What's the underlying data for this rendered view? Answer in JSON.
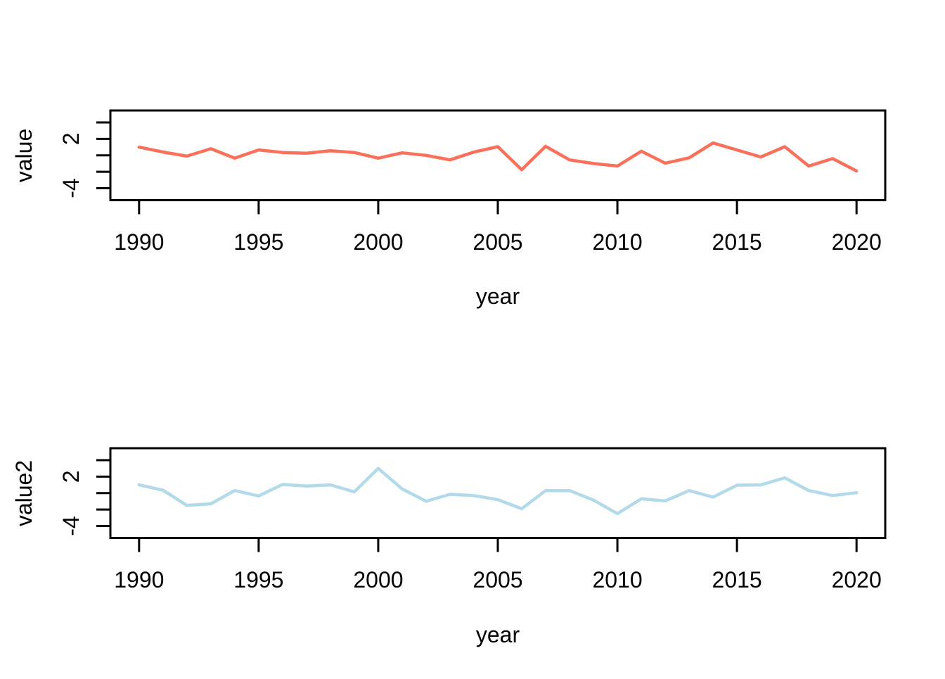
{
  "page": {
    "background": "#ffffff"
  },
  "chart_data": [
    {
      "type": "line",
      "title": "",
      "xlabel": "year",
      "ylabel": "value",
      "x": [
        1990,
        1991,
        1992,
        1993,
        1994,
        1995,
        1996,
        1997,
        1998,
        1999,
        2000,
        2001,
        2002,
        2003,
        2004,
        2005,
        2006,
        2007,
        2008,
        2009,
        2010,
        2011,
        2012,
        2013,
        2014,
        2015,
        2016,
        2017,
        2018,
        2019,
        2020
      ],
      "series": [
        {
          "name": "value",
          "color": "#f9705b",
          "values": [
            1.0,
            0.4,
            -0.1,
            0.8,
            -0.35,
            0.65,
            0.35,
            0.25,
            0.55,
            0.35,
            -0.35,
            0.3,
            0.0,
            -0.55,
            0.4,
            1.05,
            -1.75,
            1.1,
            -0.55,
            -1.0,
            -1.3,
            0.5,
            -0.95,
            -0.3,
            1.5,
            0.65,
            -0.2,
            1.05,
            -1.3,
            -0.4,
            -1.9
          ]
        }
      ],
      "xlim": [
        1988.8,
        2021.2
      ],
      "ylim": [
        -5.45,
        5.45
      ],
      "xticks": [
        1990,
        1995,
        2000,
        2005,
        2010,
        2015,
        2020
      ],
      "xtick_labels": [
        "1990",
        "1995",
        "2000",
        "2005",
        "2010",
        "2015",
        "2020"
      ],
      "yticks": [
        4,
        2,
        0,
        -2,
        -4
      ],
      "ytick_labels": [
        {
          "value": 2,
          "label": "2"
        },
        {
          "value": -4,
          "label": "-4"
        }
      ],
      "grid": false,
      "legend_position": "none",
      "axis_color": "#000000"
    },
    {
      "type": "line",
      "title": "",
      "xlabel": "year",
      "ylabel": "value2",
      "x": [
        1990,
        1991,
        1992,
        1993,
        1994,
        1995,
        1996,
        1997,
        1998,
        1999,
        2000,
        2001,
        2002,
        2003,
        2004,
        2005,
        2006,
        2007,
        2008,
        2009,
        2010,
        2011,
        2012,
        2013,
        2014,
        2015,
        2016,
        2017,
        2018,
        2019,
        2020
      ],
      "series": [
        {
          "name": "value2",
          "color": "#b2daea",
          "values": [
            1.0,
            0.35,
            -1.5,
            -1.3,
            0.3,
            -0.35,
            1.05,
            0.85,
            1.0,
            0.15,
            3.0,
            0.5,
            -1.0,
            -0.15,
            -0.3,
            -0.8,
            -1.9,
            0.3,
            0.3,
            -0.85,
            -2.5,
            -0.7,
            -0.95,
            0.3,
            -0.5,
            0.95,
            1.0,
            1.85,
            0.3,
            -0.3,
            0.05
          ]
        }
      ],
      "xlim": [
        1988.8,
        2021.2
      ],
      "ylim": [
        -5.45,
        5.45
      ],
      "xticks": [
        1990,
        1995,
        2000,
        2005,
        2010,
        2015,
        2020
      ],
      "xtick_labels": [
        "1990",
        "1995",
        "2000",
        "2005",
        "2010",
        "2015",
        "2020"
      ],
      "yticks": [
        4,
        2,
        0,
        -2,
        -4
      ],
      "ytick_labels": [
        {
          "value": 2,
          "label": "2"
        },
        {
          "value": -4,
          "label": "-4"
        }
      ],
      "grid": false,
      "legend_position": "none",
      "axis_color": "#000000"
    }
  ]
}
